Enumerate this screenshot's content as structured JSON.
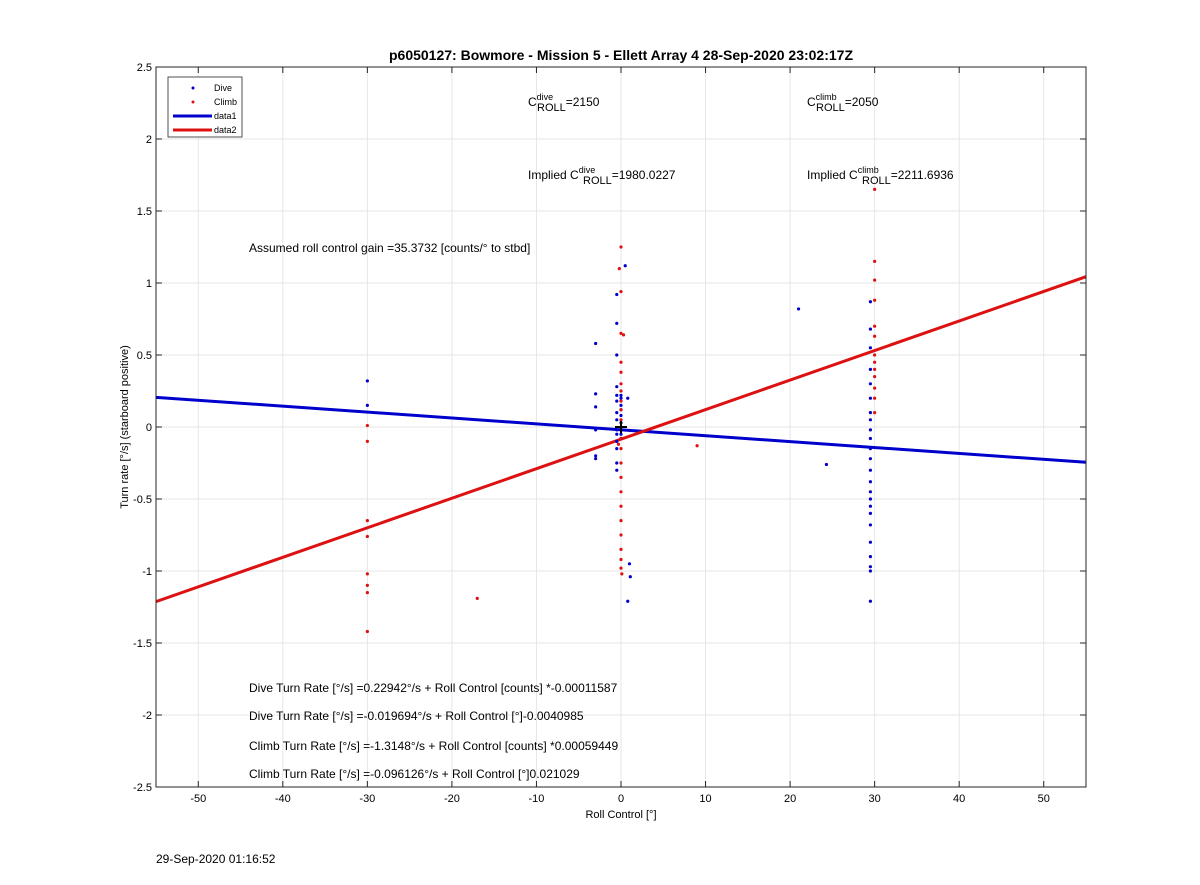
{
  "chart_data": {
    "type": "scatter",
    "title": "p6050127: Bowmore - Mission 5 - Ellett Array 4 28-Sep-2020 23:02:17Z",
    "xlabel": "Roll Control [°]",
    "ylabel": "Turn rate [°/s] (starboard positive)",
    "xlim": [
      -55,
      55
    ],
    "ylim": [
      -2.5,
      2.5
    ],
    "xticks": [
      -50,
      -40,
      -30,
      -20,
      -10,
      0,
      10,
      20,
      30,
      40,
      50
    ],
    "yticks": [
      -2.5,
      -2,
      -1.5,
      -1,
      -0.5,
      0,
      0.5,
      1,
      1.5,
      2,
      2.5
    ],
    "grid": true,
    "legend_position": "top-left",
    "legend": [
      {
        "label": "Dive",
        "kind": "point",
        "color": "#0000cc"
      },
      {
        "label": "Climb",
        "kind": "point",
        "color": "#dd1111"
      },
      {
        "label": "data1",
        "kind": "line",
        "color": "#0000cc"
      },
      {
        "label": "data2",
        "kind": "line",
        "color": "#dd1111"
      }
    ],
    "series": [
      {
        "name": "Dive",
        "color": "#0000cc",
        "points": [
          [
            -30,
            0.32
          ],
          [
            -30,
            0.15
          ],
          [
            -3,
            0.58
          ],
          [
            -3,
            0.23
          ],
          [
            -3,
            0.14
          ],
          [
            -3,
            -0.2
          ],
          [
            -3,
            -0.22
          ],
          [
            -3,
            -0.02
          ],
          [
            -0.5,
            0.92
          ],
          [
            -0.5,
            0.72
          ],
          [
            -0.5,
            0.5
          ],
          [
            -0.5,
            0.28
          ],
          [
            -0.5,
            0.22
          ],
          [
            -0.5,
            0.18
          ],
          [
            -0.5,
            0.1
          ],
          [
            -0.5,
            0.05
          ],
          [
            -0.5,
            -0.02
          ],
          [
            -0.5,
            -0.05
          ],
          [
            -0.5,
            -0.1
          ],
          [
            -0.5,
            -0.15
          ],
          [
            -0.5,
            -0.25
          ],
          [
            -0.5,
            -0.3
          ],
          [
            0,
            0.22
          ],
          [
            0,
            0.2
          ],
          [
            0,
            0.15
          ],
          [
            0,
            0.12
          ],
          [
            0,
            0.08
          ],
          [
            0,
            0.03
          ],
          [
            0,
            -0.05
          ],
          [
            0,
            -0.08
          ],
          [
            0.5,
            1.12
          ],
          [
            0.8,
            0.2
          ],
          [
            1,
            -0.95
          ],
          [
            1.1,
            -1.04
          ],
          [
            0.8,
            -1.21
          ],
          [
            21,
            0.82
          ],
          [
            24.3,
            -0.26
          ],
          [
            29.5,
            0.87
          ],
          [
            29.5,
            0.68
          ],
          [
            29.5,
            0.55
          ],
          [
            29.5,
            0.4
          ],
          [
            29.5,
            0.3
          ],
          [
            29.5,
            0.2
          ],
          [
            29.5,
            0.1
          ],
          [
            29.5,
            0.05
          ],
          [
            29.5,
            -0.02
          ],
          [
            29.5,
            -0.08
          ],
          [
            29.5,
            -0.15
          ],
          [
            29.5,
            -0.22
          ],
          [
            29.5,
            -0.3
          ],
          [
            29.5,
            -0.38
          ],
          [
            29.5,
            -0.45
          ],
          [
            29.5,
            -0.5
          ],
          [
            29.5,
            -0.55
          ],
          [
            29.5,
            -0.6
          ],
          [
            29.5,
            -0.68
          ],
          [
            29.5,
            -0.8
          ],
          [
            29.5,
            -0.9
          ],
          [
            29.5,
            -0.97
          ],
          [
            29.5,
            -1.0
          ],
          [
            29.5,
            -1.21
          ]
        ]
      },
      {
        "name": "Climb",
        "color": "#dd1111",
        "points": [
          [
            -30,
            0.01
          ],
          [
            -30,
            -0.1
          ],
          [
            -30,
            -0.65
          ],
          [
            -30,
            -0.76
          ],
          [
            -30,
            -1.02
          ],
          [
            -30,
            -1.1
          ],
          [
            -30,
            -1.15
          ],
          [
            -30,
            -1.42
          ],
          [
            -17,
            -1.19
          ],
          [
            9,
            -0.13
          ],
          [
            0,
            1.25
          ],
          [
            -0.2,
            1.1
          ],
          [
            0,
            0.94
          ],
          [
            0,
            0.65
          ],
          [
            0.3,
            0.64
          ],
          [
            0,
            0.45
          ],
          [
            0,
            0.38
          ],
          [
            0,
            0.3
          ],
          [
            0,
            0.25
          ],
          [
            0,
            0.18
          ],
          [
            0,
            0.12
          ],
          [
            0,
            0.05
          ],
          [
            0,
            0.0
          ],
          [
            0,
            -0.08
          ],
          [
            0,
            -0.15
          ],
          [
            0,
            -0.25
          ],
          [
            0,
            -0.35
          ],
          [
            0,
            -0.45
          ],
          [
            0,
            -0.55
          ],
          [
            0,
            -0.65
          ],
          [
            0,
            -0.75
          ],
          [
            0,
            -0.85
          ],
          [
            0,
            -0.92
          ],
          [
            0,
            -0.98
          ],
          [
            0.1,
            -1.02
          ],
          [
            -0.3,
            -0.12
          ],
          [
            30,
            1.65
          ],
          [
            30,
            1.15
          ],
          [
            30,
            1.02
          ],
          [
            30,
            0.88
          ],
          [
            30,
            0.7
          ],
          [
            30,
            0.63
          ],
          [
            30,
            0.5
          ],
          [
            30,
            0.45
          ],
          [
            30,
            0.4
          ],
          [
            30,
            0.35
          ],
          [
            30,
            0.27
          ],
          [
            30,
            0.2
          ],
          [
            30,
            0.1
          ]
        ]
      }
    ],
    "lines": [
      {
        "name": "data1",
        "color": "#0000cc",
        "x": [
          -55,
          55
        ],
        "y": [
          0.206,
          -0.245
        ]
      },
      {
        "name": "data2",
        "color": "#dd1111",
        "x": [
          -55,
          55
        ],
        "y": [
          -1.2126,
          1.0439
        ]
      }
    ],
    "marker": {
      "x": 0,
      "y": 0,
      "symbol": "+"
    },
    "annotations": {
      "c_dive": {
        "base": "C",
        "sup": "dive",
        "sub": "ROLL",
        "value": "=2150"
      },
      "c_climb": {
        "base": "C",
        "sup": "climb",
        "sub": "ROLL",
        "value": "=2050"
      },
      "implied_dive": {
        "prefix": "Implied ",
        "base": "C",
        "sup": "dive",
        "sub": "ROLL",
        "value": "=1980.0227"
      },
      "implied_climb": {
        "prefix": "Implied ",
        "base": "C",
        "sup": "climb",
        "sub": "ROLL",
        "value": "=2211.6936"
      },
      "gain": "Assumed roll control gain =35.3732 [counts/° to stbd]",
      "equations": [
        "Dive Turn Rate [°/s] =0.22942°/s + Roll Control [counts] *-0.00011587",
        "Dive Turn Rate [°/s] =-0.019694°/s + Roll Control [°]-0.0040985",
        "Climb Turn Rate [°/s] =-1.3148°/s + Roll Control [counts] *0.00059449",
        "Climb Turn Rate [°/s] =-0.096126°/s + Roll Control [°]0.021029"
      ]
    }
  },
  "footer": {
    "timestamp": "29-Sep-2020 01:16:52"
  }
}
